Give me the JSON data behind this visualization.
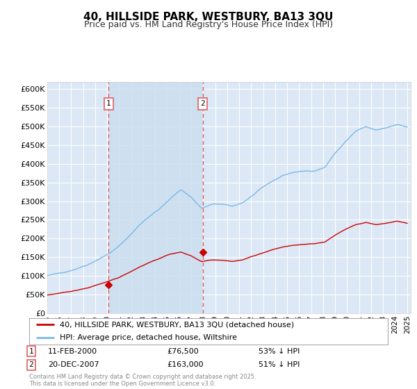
{
  "title": "40, HILLSIDE PARK, WESTBURY, BA13 3QU",
  "subtitle": "Price paid vs. HM Land Registry's House Price Index (HPI)",
  "ylabel_ticks": [
    "£0",
    "£50K",
    "£100K",
    "£150K",
    "£200K",
    "£250K",
    "£300K",
    "£350K",
    "£400K",
    "£450K",
    "£500K",
    "£550K",
    "£600K"
  ],
  "ylim": [
    0,
    620000
  ],
  "ytick_values": [
    0,
    50000,
    100000,
    150000,
    200000,
    250000,
    300000,
    350000,
    400000,
    450000,
    500000,
    550000,
    600000
  ],
  "sale1_year": 2000.12,
  "sale1_price": 76500,
  "sale1_label": "1",
  "sale1_date": "11-FEB-2000",
  "sale1_hpi": "53% ↓ HPI",
  "sale2_year": 2007.97,
  "sale2_price": 163000,
  "sale2_label": "2",
  "sale2_date": "20-DEC-2007",
  "sale2_hpi": "51% ↓ HPI",
  "hpi_color": "#7ab8e8",
  "sale_color": "#cc0000",
  "vline_color": "#e06060",
  "fig_bg_color": "#ffffff",
  "plot_bg": "#dce8f5",
  "grid_color": "#ffffff",
  "between_fill_color": "#ccdff0",
  "legend_label_red": "40, HILLSIDE PARK, WESTBURY, BA13 3QU (detached house)",
  "legend_label_blue": "HPI: Average price, detached house, Wiltshire",
  "footnote": "Contains HM Land Registry data © Crown copyright and database right 2025.\nThis data is licensed under the Open Government Licence v3.0."
}
